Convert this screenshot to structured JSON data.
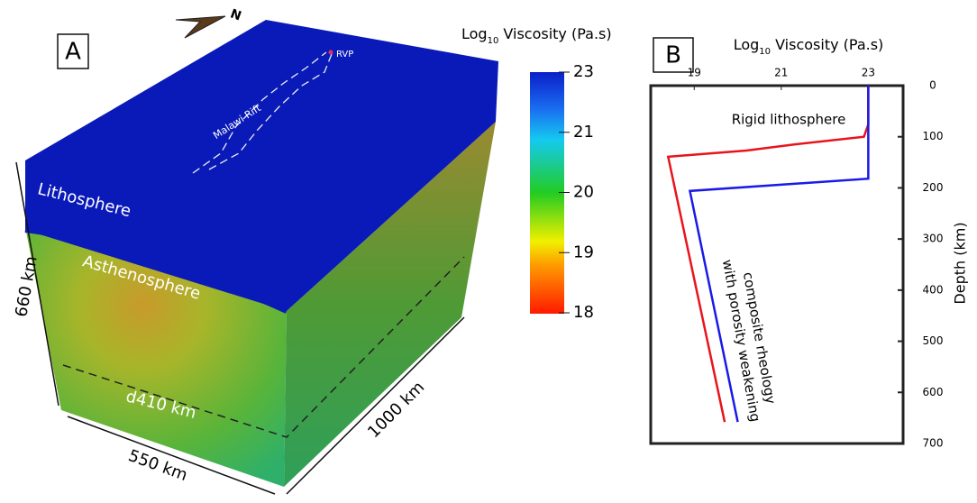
{
  "panel_a": {
    "label": "A",
    "compass": "N",
    "volcano": "RVP",
    "rift": "Malawi Rift",
    "layers": [
      "Lithosphere",
      "Asthenosphere",
      "d410 km"
    ],
    "dimensions": [
      "660 km",
      "550 km",
      "1000 km"
    ],
    "colorbar": {
      "title": {
        "base": "Log",
        "subscript": "10",
        "rest": " Viscosity (Pa.s)"
      },
      "ticks": [
        23,
        21,
        20,
        19,
        18
      ]
    }
  },
  "chart_data": {
    "type": "line",
    "panel": "B",
    "x_label": {
      "base": "Log",
      "subscript": "10",
      "rest": " Viscosity (Pa.s)"
    },
    "y_label": "Depth (km)",
    "xlim": [
      18,
      23.8
    ],
    "xticks": [
      19,
      21,
      23
    ],
    "ylim": [
      700,
      0
    ],
    "yticks": [
      0,
      100,
      200,
      300,
      400,
      500,
      600,
      700
    ],
    "annotations": [
      "Rigid lithosphere",
      "composite rheology",
      "with porosity weakening"
    ],
    "series": [
      {
        "color": "#e8141b",
        "x": [
          23,
          23,
          22.9,
          21.3,
          20.2,
          18.4,
          19.7
        ],
        "y": [
          0,
          76,
          100,
          115,
          127,
          139,
          658
        ]
      },
      {
        "color": "#1a1ae6",
        "x": [
          23,
          23,
          18.9,
          20.0
        ],
        "y": [
          0,
          182,
          206,
          658
        ]
      }
    ]
  }
}
